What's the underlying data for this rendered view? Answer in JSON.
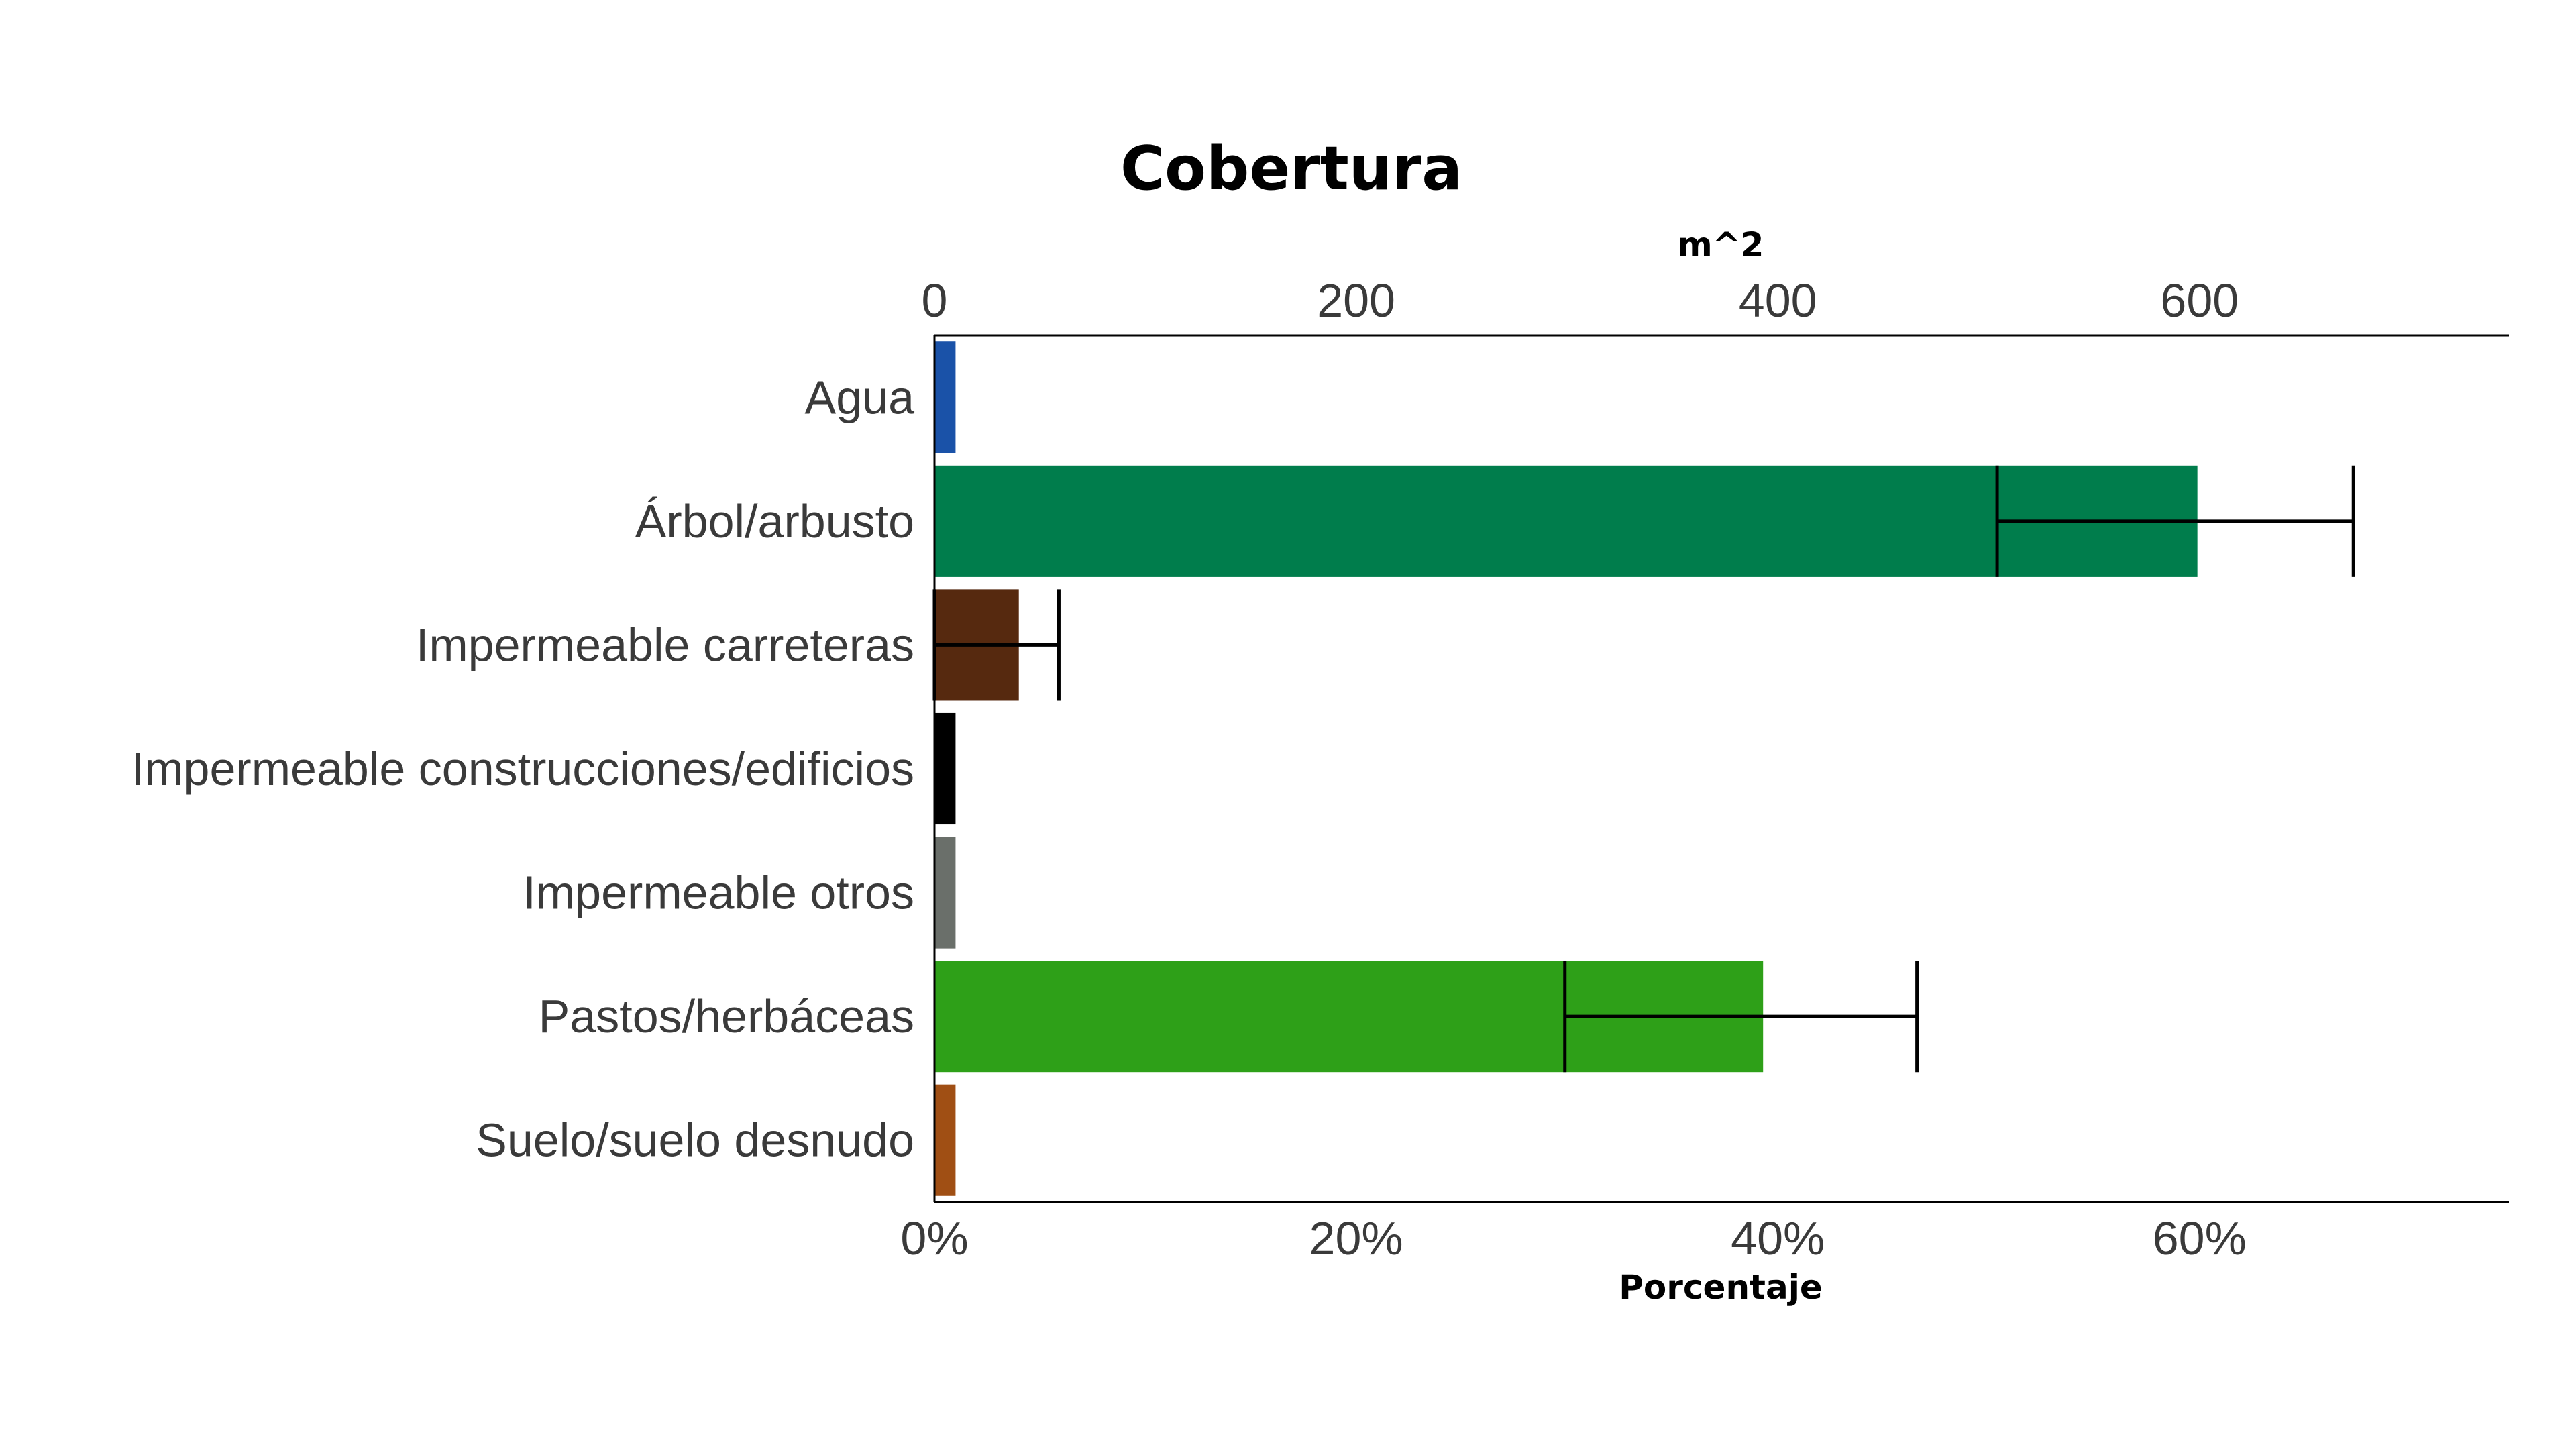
{
  "chart_data": {
    "type": "bar",
    "orientation": "horizontal",
    "title": "Cobertura",
    "xlabel": "Porcentaje",
    "x2label": "m^2",
    "categories": [
      "Agua",
      "Árbol/arbusto",
      "Impermeable carreteras",
      "Impermeable construcciones/edificios",
      "Impermeable otros",
      "Pastos/herbáceas",
      "Suelo/suelo desnudo"
    ],
    "values": [
      1.0,
      59.9,
      4.0,
      1.0,
      1.0,
      39.3,
      1.0
    ],
    "error_low": [
      null,
      50.4,
      0.0,
      null,
      null,
      29.9,
      null
    ],
    "error_high": [
      null,
      67.3,
      5.9,
      null,
      null,
      46.6,
      null
    ],
    "colors": [
      "#1a52a8",
      "#007d4c",
      "#56290f",
      "#000000",
      "#6a6f6a",
      "#2ea018",
      "#a04f14"
    ],
    "xlim": [
      0,
      75
    ],
    "x_ticks": [
      0,
      20,
      40,
      60
    ],
    "x_tick_labels": [
      "0%",
      "20%",
      "40%",
      "60%"
    ],
    "x2_ticks": [
      0,
      200,
      400,
      600
    ],
    "x2_tick_labels": [
      "0",
      "200",
      "400",
      "600"
    ],
    "x2_per_percent": 10,
    "grid": false,
    "legend": "none"
  }
}
